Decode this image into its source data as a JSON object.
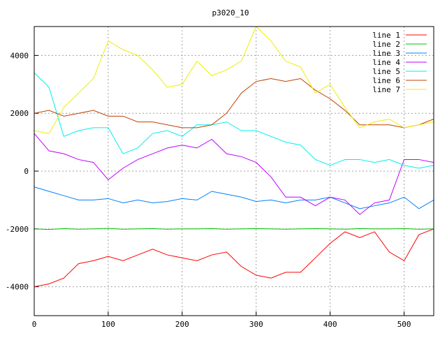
{
  "chart_data": {
    "type": "line",
    "title": "p3020_10",
    "xlabel": "",
    "ylabel": "",
    "xlim": [
      0,
      540
    ],
    "ylim": [
      -5000,
      5000
    ],
    "xticks": [
      0,
      100,
      200,
      300,
      400,
      500
    ],
    "yticks": [
      -4000,
      -2000,
      0,
      2000,
      4000
    ],
    "grid": true,
    "legend_position": "top-right",
    "x": [
      0,
      20,
      40,
      60,
      80,
      100,
      120,
      140,
      160,
      180,
      200,
      220,
      240,
      260,
      280,
      300,
      320,
      340,
      360,
      380,
      400,
      420,
      440,
      460,
      480,
      500,
      520,
      540
    ],
    "series": [
      {
        "name": "line 1",
        "color": "#ff0000",
        "values": [
          -4000,
          -3900,
          -3700,
          -3200,
          -3100,
          -2950,
          -3100,
          -2900,
          -2700,
          -2900,
          -3000,
          -3100,
          -2900,
          -2800,
          -3300,
          -3600,
          -3700,
          -3500,
          -3500,
          -3000,
          -2500,
          -2100,
          -2300,
          -2100,
          -2800,
          -3100,
          -2200,
          -2000
        ]
      },
      {
        "name": "line 2",
        "color": "#00c000",
        "values": [
          -2000,
          -2020,
          -1990,
          -2010,
          -2000,
          -1980,
          -2010,
          -2000,
          -1990,
          -2010,
          -2000,
          -2000,
          -1990,
          -2010,
          -2000,
          -1990,
          -2000,
          -2010,
          -2000,
          -1990,
          -2000,
          -2010,
          -1990,
          -2000,
          -2000,
          -1990,
          -2010,
          -2000
        ]
      },
      {
        "name": "line 3",
        "color": "#0080ff",
        "values": [
          -550,
          -700,
          -850,
          -1000,
          -1000,
          -950,
          -1100,
          -1000,
          -1100,
          -1050,
          -950,
          -1000,
          -700,
          -800,
          -900,
          -1050,
          -1000,
          -1100,
          -1000,
          -1000,
          -900,
          -1100,
          -1300,
          -1200,
          -1100,
          -900,
          -1300,
          -1000
        ]
      },
      {
        "name": "line 4",
        "color": "#c000ff",
        "values": [
          1300,
          700,
          600,
          400,
          300,
          -300,
          100,
          400,
          600,
          800,
          900,
          800,
          1100,
          600,
          500,
          300,
          -200,
          -900,
          -900,
          -1200,
          -900,
          -1000,
          -1500,
          -1100,
          -1000,
          400,
          400,
          300
        ]
      },
      {
        "name": "line 5",
        "color": "#00eeee",
        "values": [
          3400,
          2900,
          1200,
          1400,
          1500,
          1500,
          600,
          800,
          1300,
          1400,
          1200,
          1600,
          1600,
          1700,
          1400,
          1400,
          1200,
          1000,
          900,
          400,
          200,
          400,
          400,
          300,
          400,
          200,
          100,
          200
        ]
      },
      {
        "name": "line 6",
        "color": "#c04000",
        "values": [
          2000,
          2100,
          1900,
          2000,
          2100,
          1900,
          1900,
          1700,
          1700,
          1600,
          1500,
          1500,
          1600,
          2000,
          2700,
          3100,
          3200,
          3100,
          3200,
          2800,
          2500,
          2100,
          1600,
          1600,
          1600,
          1500,
          1600,
          1800
        ]
      },
      {
        "name": "line 7",
        "color": "#eeee00",
        "values": [
          1400,
          1300,
          2200,
          2700,
          3200,
          4500,
          4200,
          4000,
          3500,
          2900,
          3000,
          3800,
          3300,
          3500,
          3800,
          5000,
          4500,
          3800,
          3600,
          2700,
          3000,
          2200,
          1500,
          1700,
          1800,
          1500,
          1600,
          1700
        ]
      }
    ]
  }
}
